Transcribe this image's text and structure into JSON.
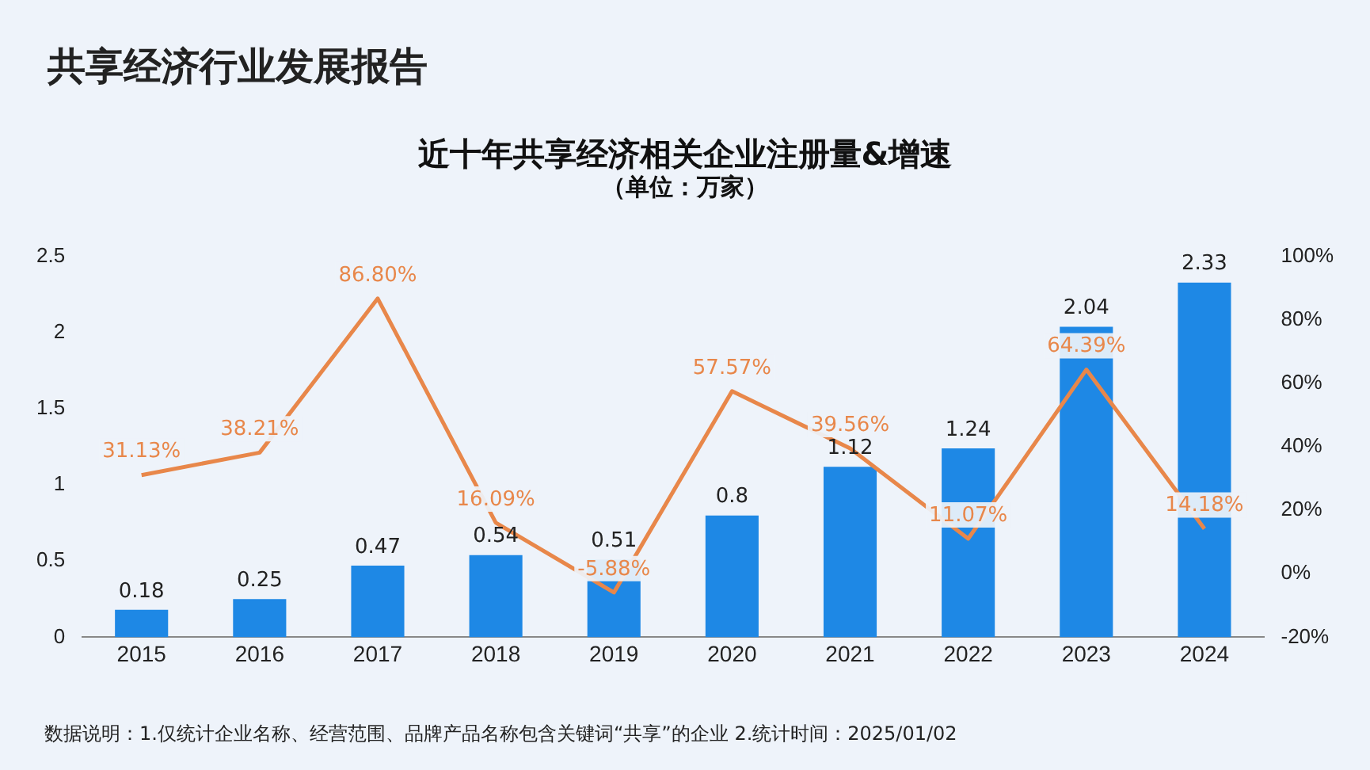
{
  "chart_data": {
    "type": "bar",
    "title": "近十年共享经济相关企业注册量&增速",
    "subtitle": "（单位：万家）",
    "annotations": [
      "共享经济行业发展报告",
      "数据说明：1.仅统计企业名称、经营范围、品牌产品名称包含关键词“共享”的企业 2.统计时间：2025/01/02"
    ],
    "categories": [
      "2015",
      "2016",
      "2017",
      "2018",
      "2019",
      "2020",
      "2021",
      "2022",
      "2023",
      "2024"
    ],
    "series": [
      {
        "color": "#1e88e5",
        "values": [
          0.18,
          0.25,
          0.47,
          0.54,
          0.51,
          0.8,
          1.12,
          1.24,
          2.04,
          2.33
        ],
        "value_labels": [
          "0.18",
          "0.25",
          "0.47",
          "0.54",
          "0.51",
          "0.8",
          "1.12",
          "1.24",
          "2.04",
          "2.33"
        ]
      },
      {
        "type": "line",
        "axis": "y2",
        "color": "#e8874a",
        "values": [
          31.13,
          38.21,
          86.8,
          16.09,
          -5.88,
          57.57,
          39.56,
          11.07,
          64.39,
          14.18
        ],
        "value_labels": [
          "31.13%",
          "38.21%",
          "86.80%",
          "16.09%",
          "-5.88%",
          "57.57%",
          "39.56%",
          "11.07%",
          "64.39%",
          "14.18%"
        ]
      }
    ],
    "ylim": [
      0,
      2.5
    ],
    "yticks": [
      0,
      0.5,
      1,
      1.5,
      2,
      2.5
    ],
    "y2lim": [
      -20,
      100
    ],
    "y2ticks": [
      {
        "value": -20,
        "label": "-20%"
      },
      {
        "value": 0,
        "label": "0%"
      },
      {
        "value": 20,
        "label": "20%"
      },
      {
        "value": 40,
        "label": "40%"
      },
      {
        "value": 60,
        "label": "60%"
      },
      {
        "value": 80,
        "label": "80%"
      },
      {
        "value": 100,
        "label": "100%"
      }
    ],
    "grid": false,
    "legend": false,
    "marker": "none",
    "line_style": "solid"
  }
}
